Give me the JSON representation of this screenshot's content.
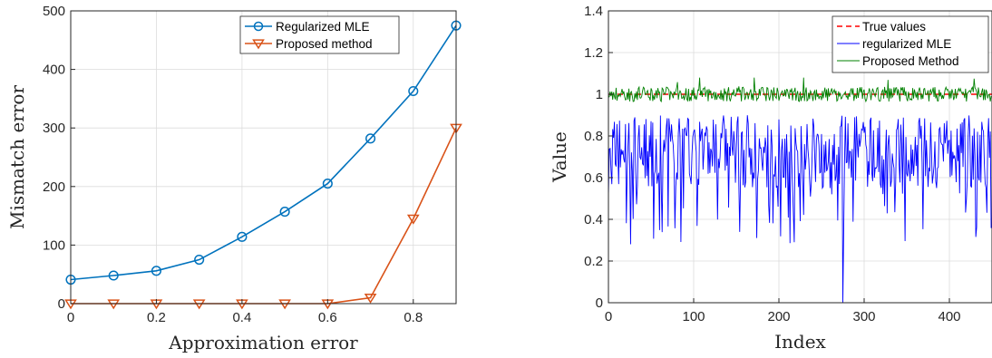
{
  "chart_data": [
    {
      "type": "line",
      "title": "",
      "xlabel": "Approximation error",
      "ylabel": "Mismatch error",
      "xlim": [
        0,
        0.9
      ],
      "ylim": [
        0,
        500
      ],
      "xticks": [
        "0",
        "0.2",
        "0.4",
        "0.6",
        "0.8"
      ],
      "xtick_values": [
        0,
        0.2,
        0.4,
        0.6,
        0.8
      ],
      "yticks": [
        "0",
        "100",
        "200",
        "300",
        "400",
        "500"
      ],
      "ytick_values": [
        0,
        100,
        200,
        300,
        400,
        500
      ],
      "grid": true,
      "legend_position": "top-right",
      "x": [
        0,
        0.1,
        0.2,
        0.3,
        0.4,
        0.5,
        0.6,
        0.7,
        0.8,
        0.9
      ],
      "series": [
        {
          "name": "Regularized MLE",
          "color": "#0072BD",
          "marker": "circle",
          "values": [
            41,
            48,
            56,
            75,
            114,
            157,
            205,
            282,
            363,
            475
          ]
        },
        {
          "name": "Proposed method",
          "color": "#D95319",
          "marker": "triangle-down",
          "values": [
            0,
            0,
            0,
            0,
            0,
            0,
            0,
            10,
            145,
            300
          ]
        }
      ]
    },
    {
      "type": "line",
      "title": "",
      "xlabel": "Index",
      "ylabel": "Value",
      "xlim": [
        0,
        450
      ],
      "ylim": [
        0,
        1.4
      ],
      "xticks": [
        "0",
        "100",
        "200",
        "300",
        "400"
      ],
      "xtick_values": [
        0,
        100,
        200,
        300,
        400
      ],
      "yticks": [
        "0",
        "0.2",
        "0.4",
        "0.6",
        "0.8",
        "1",
        "1.2",
        "1.4"
      ],
      "ytick_values": [
        0,
        0.2,
        0.4,
        0.6,
        0.8,
        1,
        1.2,
        1.4
      ],
      "grid": true,
      "legend_position": "top-right",
      "n_points": 450,
      "series": [
        {
          "name": "True values",
          "color": "#ff0000",
          "style": "dashed",
          "constant": 1.0
        },
        {
          "name": "regularized MLE",
          "color": "#0000ff",
          "style": "solid",
          "range": [
            0,
            0.92
          ],
          "typical_range": [
            0.55,
            0.9
          ],
          "min_value_at": 275
        },
        {
          "name": "Proposed Method",
          "color": "#008000",
          "style": "solid",
          "range": [
            0.94,
            1.08
          ],
          "center": 1.0
        }
      ]
    }
  ]
}
